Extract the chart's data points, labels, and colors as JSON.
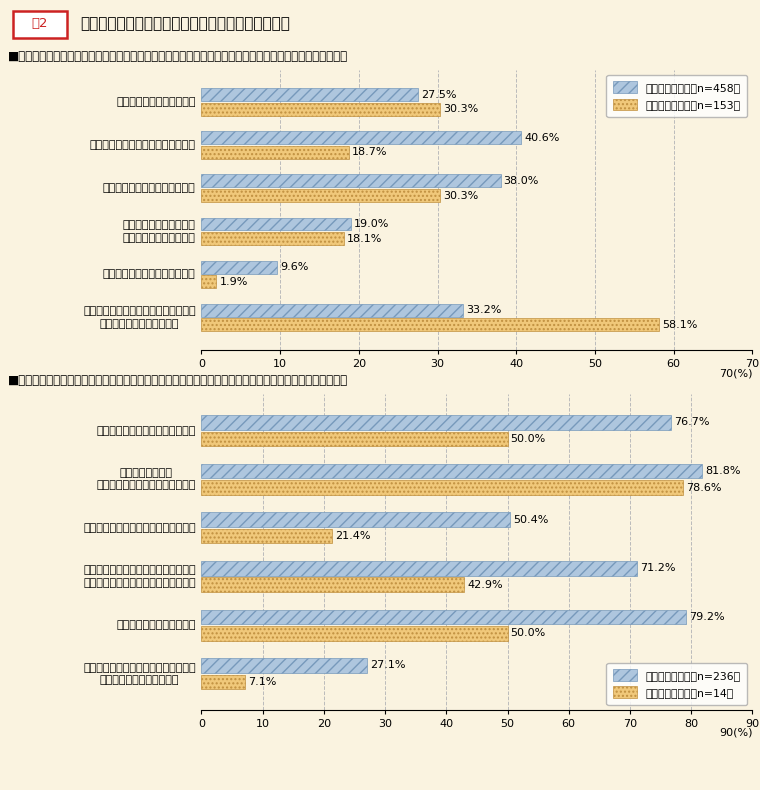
{
  "title": "国家公務員の倫理感についての印象を回答した理由",
  "fig_label": "図2",
  "section1_label": "■「倫理感が高い」又は「全体として倫理感が高いが、一部に低い者もいる」と回答した理由（複数回答）",
  "section2_label": "■「全体として倫理感が低いが、一部に高い者もいる」又は「倫理感が低い」と回答した理由（複数回答）",
  "section1": {
    "categories": [
      "不祥事や汚職が少ないから",
      "国民の利益のために働いているから",
      "公正に職務を執行しているから",
      "情報公開制度等もあり、\n業務の透明性が高いから",
      "業務を効率的に行っているから",
      "日頃接している一般職の国家公務員の\n倫理感が高いと感じるから"
    ],
    "citizen_values": [
      27.5,
      40.6,
      38.0,
      19.0,
      9.6,
      33.2
    ],
    "expert_values": [
      30.3,
      18.7,
      30.3,
      18.1,
      1.9,
      58.1
    ],
    "citizen_label": "市民アンケート（n=458）",
    "expert_label": "有識者モニター（n=153）",
    "xlim": 70,
    "xticks": [
      0,
      10,
      20,
      30,
      40,
      50,
      60,
      70
    ]
  },
  "section2": {
    "categories": [
      "不祥事や汚職がなくならないから",
      "国民の利益よりも\n自分達の利益を優先しているから",
      "職務の執行に公正さを欠いているから",
      "仕事のやり方が不透明であり、国民に\n対する説明責任を果たしていないから",
      "税金の無駄遣いが多いから",
      "日頃接している一般職の国家公務員の\n倫理感が低いと感じるから"
    ],
    "citizen_values": [
      76.7,
      81.8,
      50.4,
      71.2,
      79.2,
      27.1
    ],
    "expert_values": [
      50.0,
      78.6,
      21.4,
      42.9,
      50.0,
      7.1
    ],
    "citizen_label": "市民アンケート（n=236）",
    "expert_label": "有識者モニター（n=14）",
    "xlim": 90,
    "xticks": [
      0,
      10,
      20,
      30,
      40,
      50,
      60,
      70,
      80,
      90
    ]
  },
  "citizen_color": "#aec6de",
  "expert_color": "#f0c87a",
  "citizen_hatch": "///",
  "expert_hatch": "....",
  "citizen_edge": "#7799bb",
  "expert_edge": "#c09040",
  "background_color": "#faf3e0",
  "bar_height": 0.3,
  "label_fontsize": 8.0,
  "tick_fontsize": 8.0,
  "section_fontsize": 8.5,
  "title_fontsize": 11.0,
  "cat_fontsize": 8.0
}
